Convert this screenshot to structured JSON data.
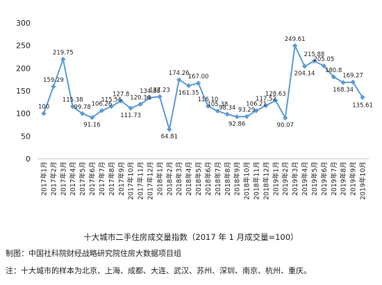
{
  "chart_data": {
    "type": "line",
    "title": "十大城市二手住房成交量指数（2017 年 1 月成交量=100）",
    "x": [
      "2017年1月",
      "2017年2月",
      "2017年3月",
      "2017年4月",
      "2017年5月",
      "2017年6月",
      "2017年7月",
      "2017年8月",
      "2017年9月",
      "2017年10月",
      "2017年11月",
      "2017年12月",
      "2018年1月",
      "2018年2月",
      "2018年3月",
      "2018年4月",
      "2018年5月",
      "2018年6月",
      "2018年7月",
      "2018年8月",
      "2018年9月",
      "2018年10月",
      "2018年11月",
      "2018年12月",
      "2019年1月",
      "2019年2月",
      "2019年3月",
      "2019年4月",
      "2019年5月",
      "2019年6月",
      "2019年7月",
      "2019年8月",
      "2019年9月",
      "2019年10月"
    ],
    "series": [
      {
        "values": [
          100,
          159.29,
          219.75,
          115.38,
          99.78,
          91.16,
          106.26,
          115.56,
          127.8,
          111.73,
          120.36,
          134.88,
          137.23,
          64.81,
          174.26,
          161.35,
          167.0,
          116.1,
          105.38,
          98.34,
          92.86,
          93.29,
          106.21,
          117.52,
          128.63,
          90.07,
          249.61,
          204.14,
          215.88,
          205.05,
          180.8,
          168.34,
          169.27,
          135.61
        ],
        "labels": [
          "100",
          "159.29",
          "219.75",
          "115.38",
          "99.78",
          "91.16",
          "106.26",
          "115.56",
          "127.8",
          "111.73",
          "120.36",
          "134.88",
          "137.23",
          "64.81",
          "174.26",
          "161.35",
          "167.00",
          "116.10",
          "105.38",
          "98.34",
          "92.86",
          "93.29",
          "106.21",
          "117.52",
          "128.63",
          "90.07",
          "249.61",
          "204.14",
          "215.88",
          "205.05",
          "180.8",
          "168.34",
          "169.27",
          "135.61"
        ]
      }
    ],
    "ylim": [
      0,
      300
    ],
    "yticks": [
      "0",
      "50",
      "100",
      "150",
      "200",
      "250",
      "300"
    ],
    "grid": false,
    "line_color": "#5b9bd5",
    "label_color": "#222222"
  },
  "source": "制图：中国社科院财经战略研究院住房大数据项目组",
  "note": "注：十大城市的样本为北京、上海、成都、大连、武汉、苏州、深圳、南京、杭州、重庆。"
}
